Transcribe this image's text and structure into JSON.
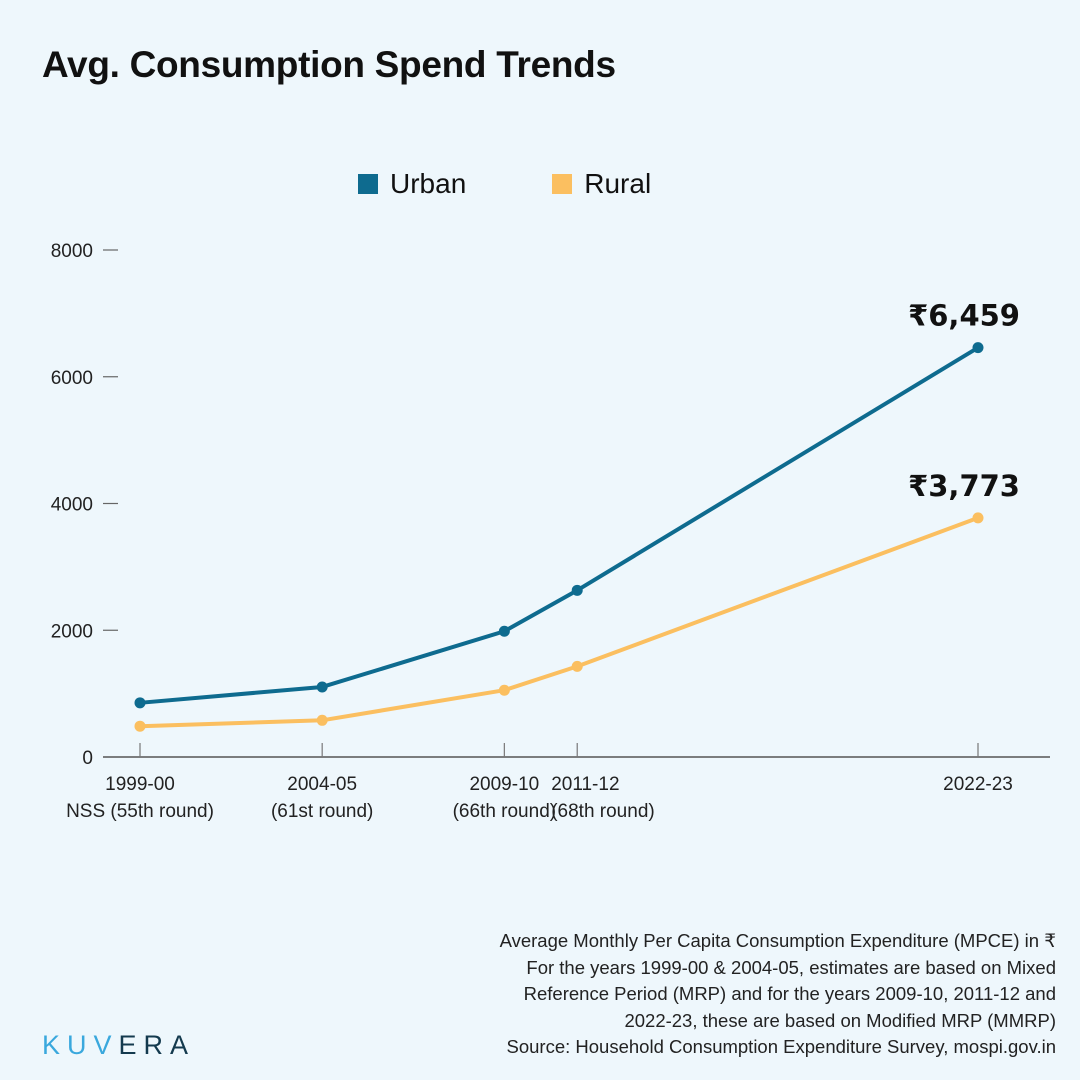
{
  "title": "Avg. Consumption Spend Trends",
  "chart_data": {
    "type": "line",
    "title": "Avg. Consumption Spend Trends",
    "categories": [
      "1999-00",
      "2004-05",
      "2009-10",
      "2011-12",
      "2022-23"
    ],
    "category_sublabels": [
      "NSS (55th round)",
      "(61st round)",
      "(66th round)",
      "(68th round)",
      ""
    ],
    "series": [
      {
        "name": "Urban",
        "color": "#0e6b8f",
        "values": [
          855,
          1105,
          1984,
          2630,
          6459
        ]
      },
      {
        "name": "Rural",
        "color": "#fbbf60",
        "values": [
          486,
          579,
          1054,
          1430,
          3773
        ]
      }
    ],
    "annotations": [
      {
        "series": "Urban",
        "category": "2022-23",
        "text": "₹6,459"
      },
      {
        "series": "Rural",
        "category": "2022-23",
        "text": "₹3,773"
      }
    ],
    "yticks": [
      0,
      2000,
      4000,
      6000,
      8000
    ],
    "ylim": [
      0,
      8000
    ],
    "xlabel": "",
    "ylabel": "",
    "legend": "top-center",
    "grid": false
  },
  "notes": [
    "Average Monthly Per Capita Consumption Expenditure (MPCE) in ₹",
    "For the years 1999-00 & 2004-05, estimates are based on Mixed",
    "Reference Period (MRP) and for the years 2009-10, 2011-12 and",
    "2022-23, these are based on Modified MRP (MMRP)",
    "Source: Household Consumption Expenditure Survey, mospi.gov.in"
  ],
  "logo": {
    "text": "KUVERA",
    "part1": "KUV",
    "part2": "ERA"
  },
  "colors": {
    "background": "#eef7fc",
    "urban": "#0e6b8f",
    "rural": "#fbbf60"
  }
}
